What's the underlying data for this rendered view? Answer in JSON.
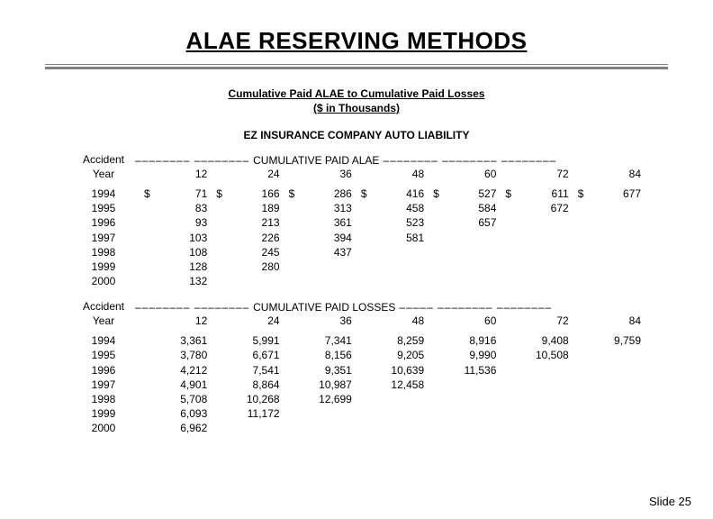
{
  "title": "ALAE RESERVING METHODS",
  "subtitle_line1": "Cumulative Paid ALAE to Cumulative Paid Losses",
  "subtitle_line2": "($ in Thousands)",
  "company": "EZ INSURANCE COMPANY AUTO LIABILITY",
  "accident_label_top": "Accident",
  "accident_label_bottom": "Year",
  "section1_title": "CUMULATIVE PAID ALAE",
  "section2_title": "CUMULATIVE PAID LOSSES",
  "periods": [
    "12",
    "24",
    "36",
    "48",
    "60",
    "72",
    "84"
  ],
  "years": [
    "1994",
    "1995",
    "1996",
    "1997",
    "1998",
    "1999",
    "2000"
  ],
  "alae": [
    [
      "71",
      "166",
      "286",
      "416",
      "527",
      "611",
      "677"
    ],
    [
      "83",
      "189",
      "313",
      "458",
      "584",
      "672",
      ""
    ],
    [
      "93",
      "213",
      "361",
      "523",
      "657",
      "",
      ""
    ],
    [
      "103",
      "226",
      "394",
      "581",
      "",
      "",
      ""
    ],
    [
      "108",
      "245",
      "437",
      "",
      "",
      "",
      ""
    ],
    [
      "128",
      "280",
      "",
      "",
      "",
      "",
      ""
    ],
    [
      "132",
      "",
      "",
      "",
      "",
      "",
      ""
    ]
  ],
  "losses": [
    [
      "3,361",
      "5,991",
      "7,341",
      "8,259",
      "8,916",
      "9,408",
      "9,759"
    ],
    [
      "3,780",
      "6,671",
      "8,156",
      "9,205",
      "9,990",
      "10,508",
      ""
    ],
    [
      "4,212",
      "7,541",
      "9,351",
      "10,639",
      "11,536",
      "",
      ""
    ],
    [
      "4,901",
      "8,864",
      "10,987",
      "12,458",
      "",
      "",
      ""
    ],
    [
      "5,708",
      "10,268",
      "12,699",
      "",
      "",
      "",
      ""
    ],
    [
      "6,093",
      "11,172",
      "",
      "",
      "",
      "",
      ""
    ],
    [
      "6,962",
      "",
      "",
      "",
      "",
      "",
      ""
    ]
  ],
  "slide_no": "Slide 25",
  "dash": "––––––––",
  "dash_short": "–––––",
  "currency": "$"
}
